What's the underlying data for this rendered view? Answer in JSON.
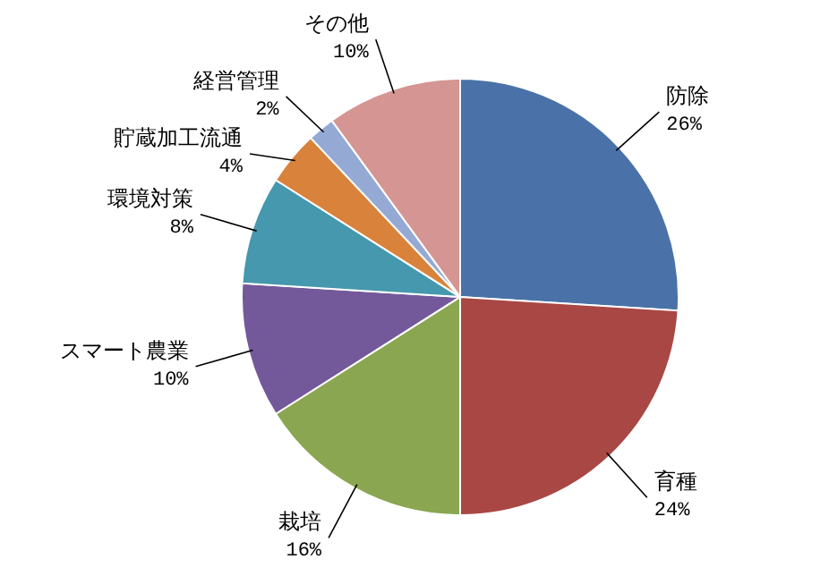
{
  "chart_data": {
    "type": "pie",
    "categories": [
      "防除",
      "育種",
      "栽培",
      "スマート農業",
      "環境対策",
      "貯蔵加工流通",
      "経営管理",
      "その他"
    ],
    "values": [
      26,
      24,
      16,
      10,
      8,
      4,
      2,
      10
    ],
    "colors": [
      "#4a72a8",
      "#a84744",
      "#8aa650",
      "#73599a",
      "#4598ad",
      "#d9823b",
      "#94aad4",
      "#d49593"
    ],
    "value_labels": [
      "26%",
      "24%",
      "16%",
      "10%",
      "8%",
      "4%",
      "2%",
      "10%"
    ]
  }
}
